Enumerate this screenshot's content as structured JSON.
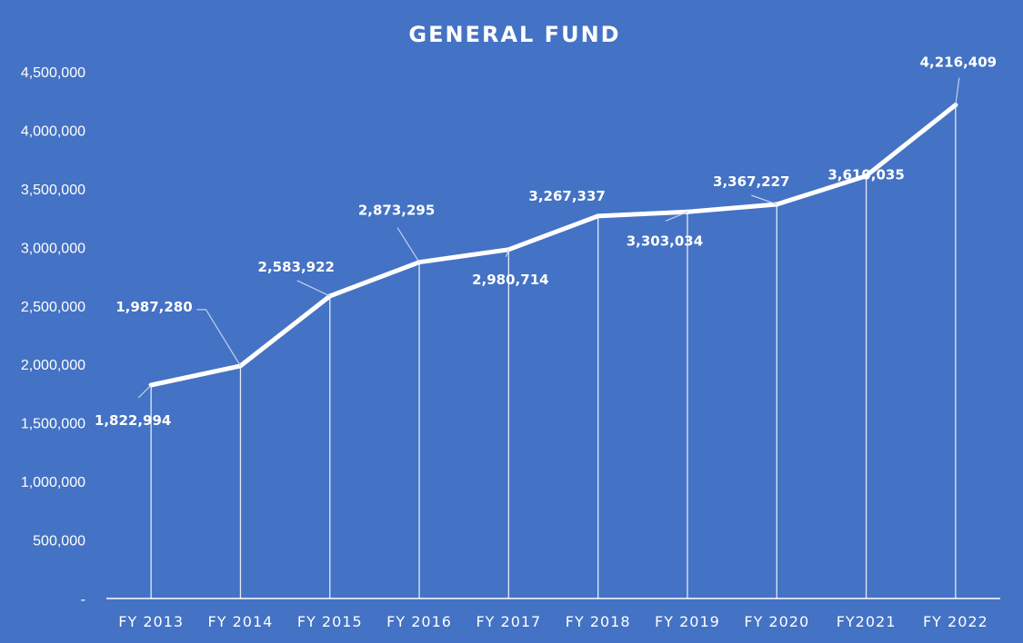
{
  "chart_data": {
    "type": "line",
    "title": "GENERAL FUND",
    "xlabel": "",
    "ylabel": "",
    "categories": [
      "FY 2013",
      "FY 2014",
      "FY 2015",
      "FY 2016",
      "FY 2017",
      "FY 2018",
      "FY 2019",
      "FY 2020",
      "FY2021",
      "FY 2022"
    ],
    "series": [
      {
        "values": [
          1822994,
          1987280,
          2583922,
          2873295,
          2980714,
          3267337,
          3303034,
          3367227,
          3610035,
          4216409
        ]
      }
    ],
    "data_labels": [
      "1,822,994",
      "1,987,280",
      "2,583,922",
      "2,873,295",
      "2,980,714",
      "3,267,337",
      "3,303,034",
      "3,367,227",
      "3,610,035",
      "4,216,409"
    ],
    "ylim": [
      0,
      4500000
    ],
    "ytick_values": [
      0,
      500000,
      1000000,
      1500000,
      2000000,
      2500000,
      3000000,
      3500000,
      4000000,
      4500000
    ],
    "ytick_labels": [
      "-",
      "500,000",
      "1,000,000",
      "1,500,000",
      "2,000,000",
      "2,500,000",
      "3,000,000",
      "3,500,000",
      "4,000,000",
      "4,500,000"
    ],
    "grid": false,
    "drop_lines": true,
    "legend": "none",
    "colors": {
      "background": "#4472C4",
      "line": "#FFFFFF",
      "text": "#FFFFFF",
      "axis": "#FFFFFF"
    }
  }
}
